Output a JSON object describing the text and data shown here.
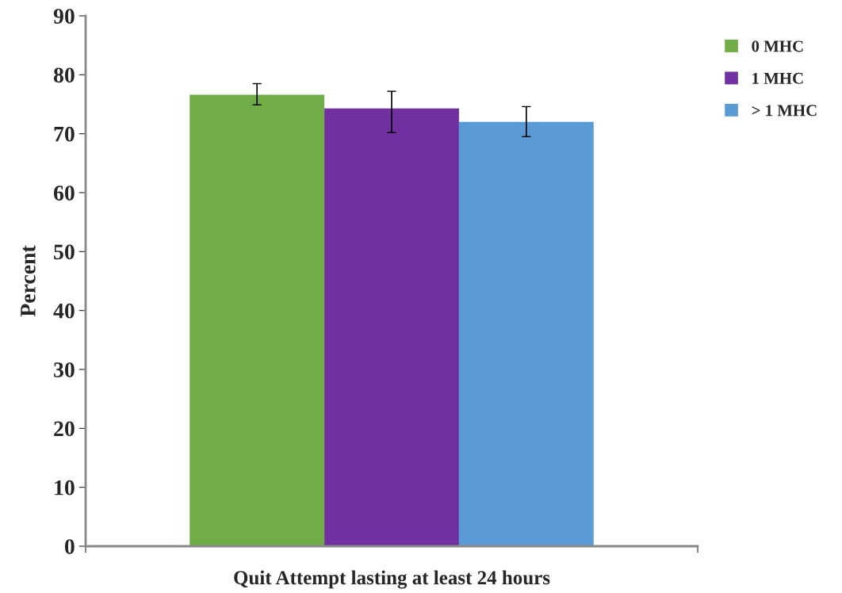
{
  "chart_data": {
    "type": "bar",
    "ylabel": "Percent",
    "categories": [
      "Quit Attempt lasting at least 24 hours"
    ],
    "series": [
      {
        "name": "0 MHC",
        "color": "#70ad47",
        "values": [
          76.6
        ],
        "errors": [
          [
            74.9,
            78.5
          ]
        ]
      },
      {
        "name": "1 MHC",
        "color": "#7030a0",
        "values": [
          74.3
        ],
        "errors": [
          [
            70.2,
            77.2
          ]
        ]
      },
      {
        "name": "> 1 MHC",
        "color": "#5b9bd5",
        "values": [
          72.0
        ],
        "errors": [
          [
            69.5,
            74.6
          ]
        ]
      }
    ],
    "ylim": [
      0,
      90
    ],
    "yticks": [
      0,
      10,
      20,
      30,
      40,
      50,
      60,
      70,
      80,
      90
    ],
    "grid": false,
    "legend": "right"
  }
}
